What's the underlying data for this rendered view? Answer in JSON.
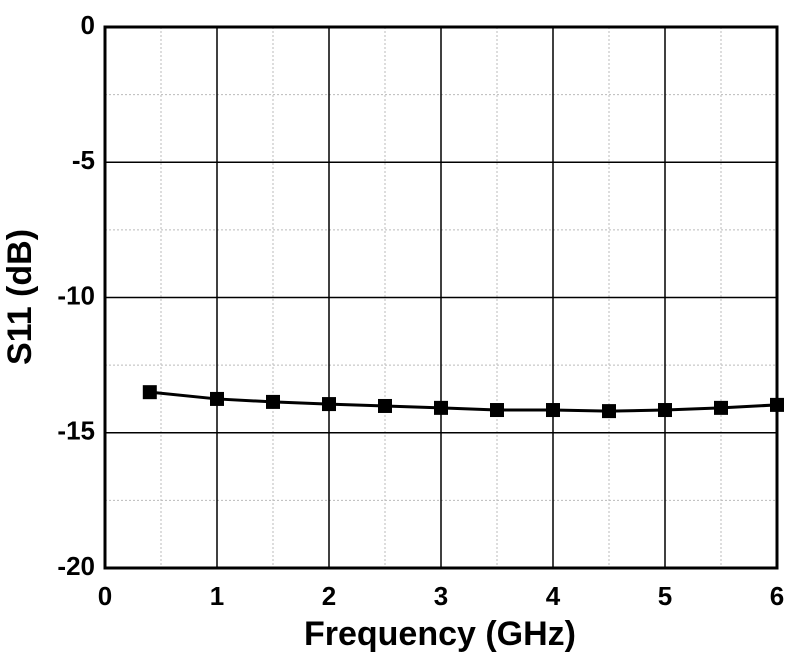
{
  "chart_data": {
    "type": "line",
    "x_label": "Frequency (GHz)",
    "y_label": "S11 (dB)",
    "x": [
      0.4,
      1,
      1.5,
      2,
      2.5,
      3,
      3.5,
      4,
      4.5,
      5,
      5.5,
      6
    ],
    "series": [
      {
        "name": "S11",
        "color": "#000000",
        "marker": "square",
        "values": [
          -13.5,
          -13.75,
          -13.86,
          -13.94,
          -14.01,
          -14.08,
          -14.16,
          -14.16,
          -14.2,
          -14.16,
          -14.08,
          -13.97
        ]
      }
    ],
    "xlim": [
      0,
      6
    ],
    "ylim": [
      -20,
      0
    ],
    "xticks": [
      0,
      1,
      2,
      3,
      4,
      5,
      6
    ],
    "yticks": [
      -20,
      -15,
      -10,
      -5,
      0
    ],
    "xminor": [
      0.5,
      1.5,
      2.5,
      3.5,
      4.5,
      5.5
    ],
    "yminor": [
      -17.5,
      -12.5,
      -7.5,
      -2.5
    ],
    "grid": true,
    "legend": false
  }
}
